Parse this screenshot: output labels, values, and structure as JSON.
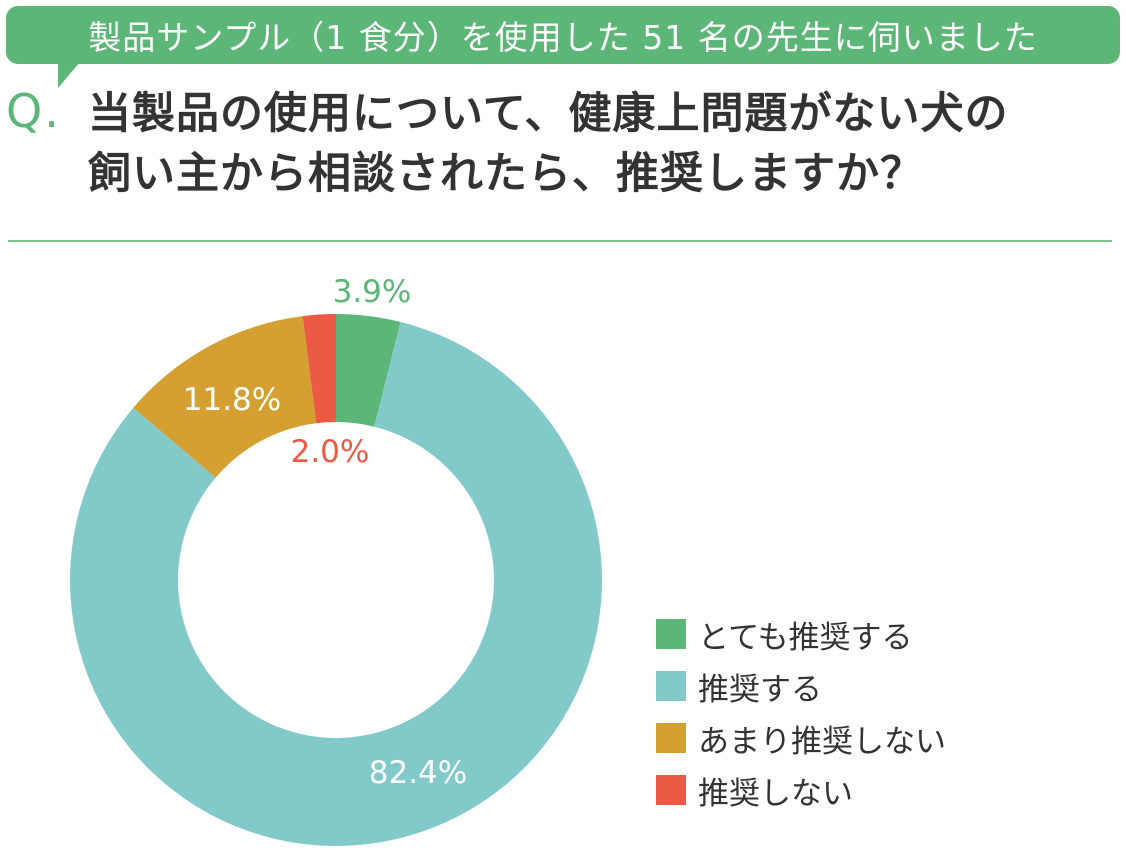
{
  "banner": {
    "text": "製品サンプル（1 食分）を使用した 51 名の先生に伺いました"
  },
  "question": {
    "marker": "Q.",
    "line1": "当製品の使用について、健康上問題がない犬の",
    "line2": "飼い主から相談されたら、推奨しますか？"
  },
  "colors": {
    "accent": "#5cb677",
    "divider": "#7cc48f"
  },
  "chart_data": {
    "type": "pie",
    "donut": true,
    "title": "",
    "categories": [
      "とても推奨する",
      "推奨する",
      "あまり推奨しない",
      "推奨しない"
    ],
    "values": [
      3.9,
      82.4,
      11.8,
      2.0
    ],
    "value_labels": [
      "3.9%",
      "82.4%",
      "11.8%",
      "2.0%"
    ],
    "colors": [
      "#5cb677",
      "#82c9ca",
      "#d4a032",
      "#ec5a45"
    ],
    "label_colors": [
      "#5cb677",
      "#ffffff",
      "#ffffff",
      "#ec5a45"
    ],
    "legend_position": "bottom-right",
    "start_angle": "12 o'clock",
    "direction": "clockwise"
  }
}
